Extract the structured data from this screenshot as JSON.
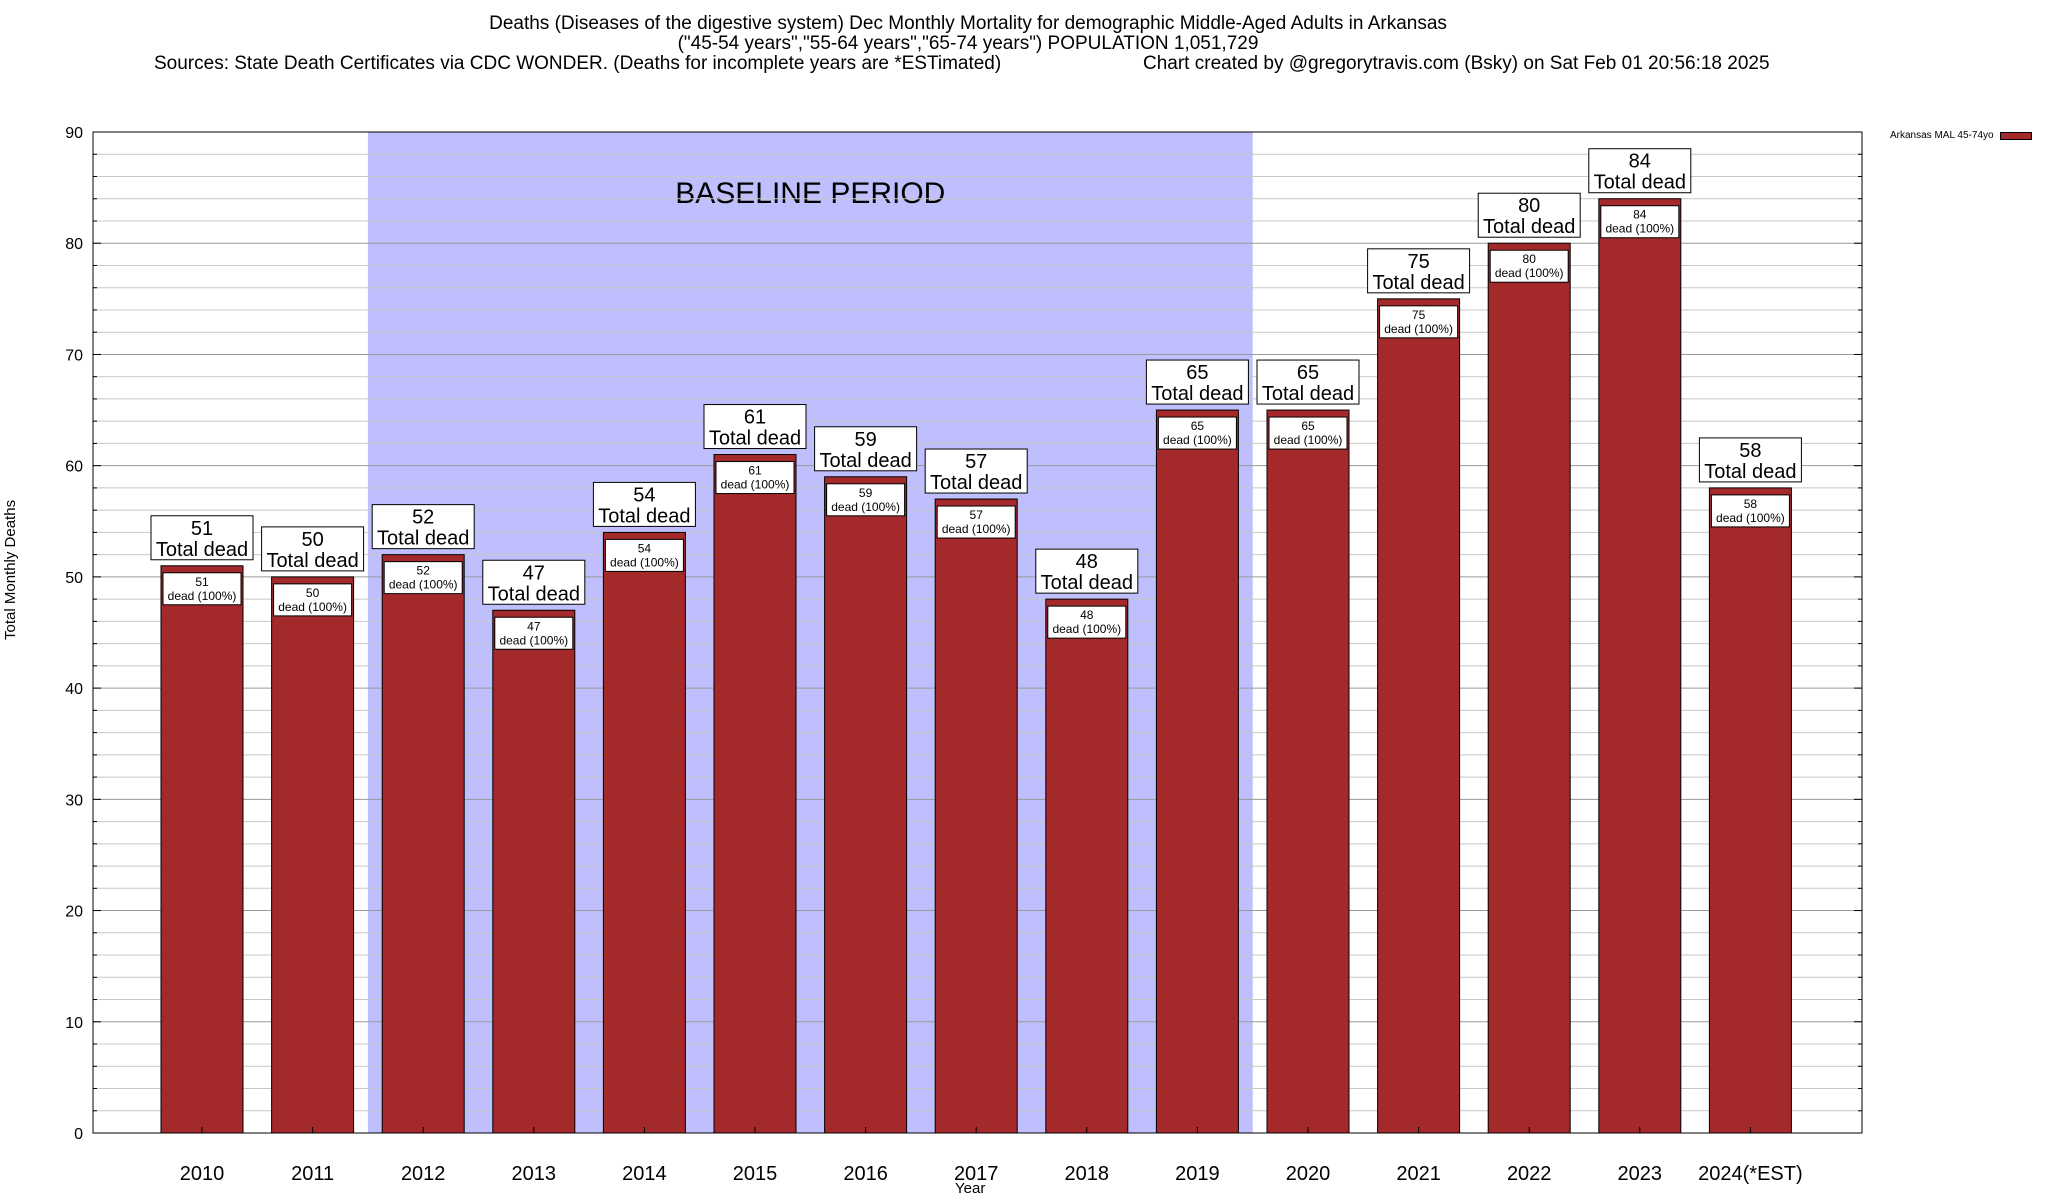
{
  "chart_data": {
    "type": "bar",
    "title": "Deaths (Diseases of the digestive system) Dec Monthly Mortality for demographic Middle-Aged Adults in Arkansas",
    "subtitle": "(\"45-54 years\",\"55-64 years\",\"65-74 years\") POPULATION 1,051,729",
    "source": "Sources: State Death Certificates via CDC WONDER. (Deaths for incomplete years are *ESTimated)",
    "credit": "Chart created by @gregorytravis.com (Bsky) on Sat Feb 01 20:56:18 2025",
    "xlabel": "Year",
    "ylabel": "Total Monthly Deaths",
    "ylim": [
      0,
      90
    ],
    "y_ticks": [
      0,
      10,
      20,
      30,
      40,
      50,
      60,
      70,
      80,
      90
    ],
    "grid": true,
    "legend_position": "top-right",
    "categories": [
      "2010",
      "2011",
      "2012",
      "2013",
      "2014",
      "2015",
      "2016",
      "2017",
      "2018",
      "2019",
      "2020",
      "2021",
      "2022",
      "2023",
      "2024(*EST)"
    ],
    "series": [
      {
        "name": "Arkansas MAL 45-74yo",
        "color": "#a3292b",
        "values": [
          51,
          50,
          52,
          47,
          54,
          61,
          59,
          57,
          48,
          65,
          65,
          75,
          80,
          84,
          58
        ]
      }
    ],
    "top_label_suffix": "Total dead",
    "inner_label_suffix": "dead (100%)",
    "baseline_period": {
      "label": "BASELINE PERIOD",
      "from_category": "2012",
      "to_category": "2019",
      "color": "#bfbffd"
    }
  }
}
